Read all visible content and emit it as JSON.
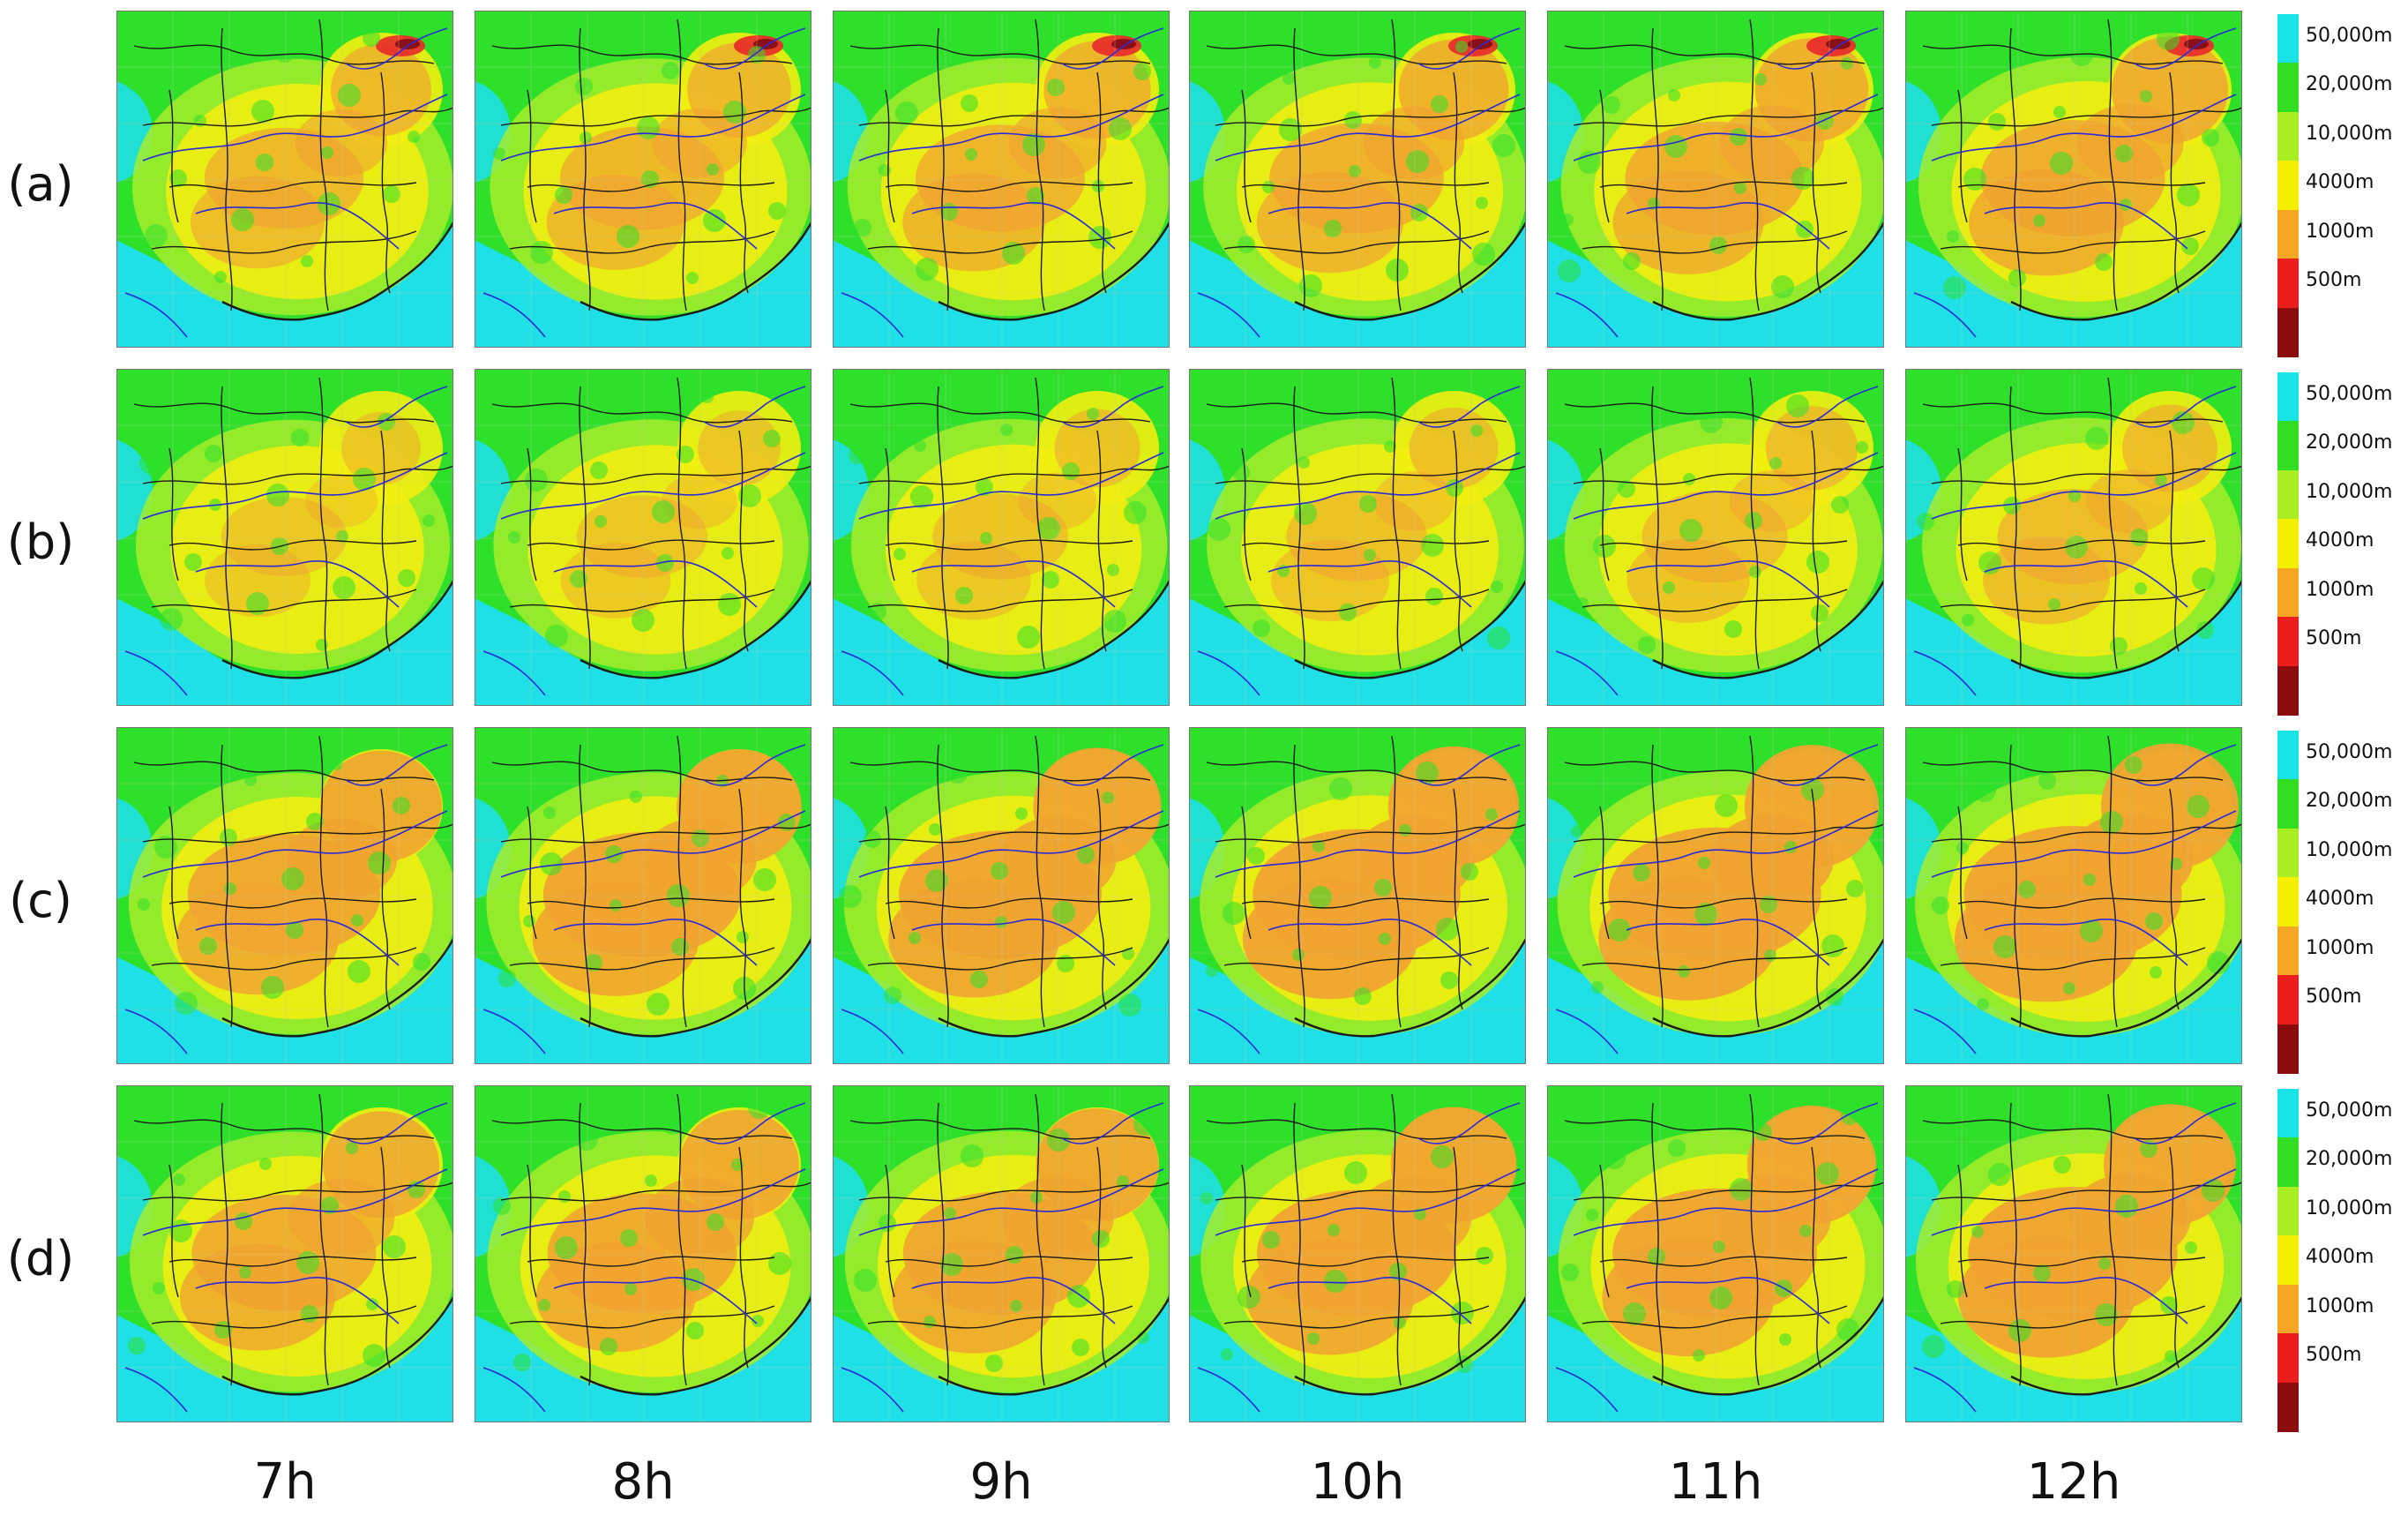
{
  "rows": [
    {
      "label": "(a)"
    },
    {
      "label": "(b)"
    },
    {
      "label": "(c)"
    },
    {
      "label": "(d)"
    }
  ],
  "columns": [
    "7h",
    "8h",
    "9h",
    "10h",
    "11h",
    "12h"
  ],
  "legend": {
    "ticks": [
      "50,000m",
      "20,000m",
      "10,000m",
      "4000m",
      "1000m",
      "500m"
    ],
    "colors": [
      "#18e4e8",
      "#33dd22",
      "#a8ee22",
      "#f5f000",
      "#f5a623",
      "#ee1d1d",
      "#8b0c0c"
    ]
  },
  "map_colors": {
    "sea": "#1fe0e6",
    "green": "#2ee02a",
    "yellow_green": "#a6ec2a",
    "yellow": "#f2ee10",
    "orange": "#f0a430",
    "red": "#e8282a",
    "dark_red": "#8a1016",
    "boundary": "#1a1a1a",
    "river": "#2a2ad8"
  },
  "row_intensity": [
    0.35,
    0.15,
    0.55,
    0.5
  ]
}
